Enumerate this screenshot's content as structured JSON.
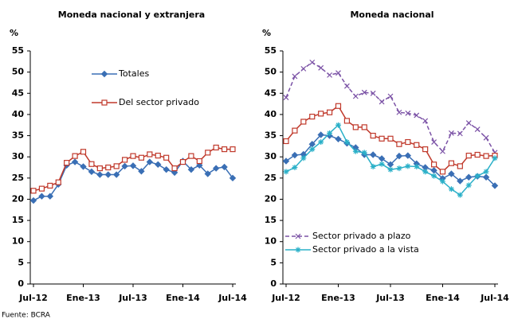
{
  "chart_data": [
    {
      "type": "line",
      "title": "Moneda nacional y extranjera",
      "y_label": "%",
      "categories": [
        "Jul-12",
        null,
        null,
        null,
        null,
        null,
        "Ene-13",
        null,
        null,
        null,
        null,
        null,
        "Jul-13",
        null,
        null,
        null,
        null,
        null,
        "Ene-14",
        null,
        null,
        null,
        null,
        null,
        "Jul-14"
      ],
      "ylim": [
        0,
        55
      ],
      "yticks": [
        0,
        5,
        10,
        15,
        20,
        25,
        30,
        35,
        40,
        45,
        50,
        55
      ],
      "grid": false,
      "series": [
        {
          "name": "Totales",
          "color": "#3a6fb5",
          "marker": "diamond",
          "dashed": false,
          "values": [
            19.7,
            20.7,
            20.7,
            23.5,
            28,
            28.8,
            27.7,
            26.5,
            25.8,
            25.8,
            25.8,
            27.8,
            27.9,
            26.6,
            28.8,
            28.2,
            27,
            26.3,
            29,
            27,
            28,
            26,
            27.3,
            27.6,
            25
          ]
        },
        {
          "name": "Del sector privado",
          "color": "#c0392b",
          "marker": "square",
          "dashed": false,
          "values": [
            22,
            22.5,
            23.2,
            24,
            28.6,
            30.2,
            31.2,
            28.3,
            27.3,
            27.5,
            27.8,
            29.3,
            30.2,
            29.8,
            30.6,
            30.3,
            29.8,
            27.3,
            28.8,
            30.2,
            29,
            31,
            32.2,
            31.8,
            31.8
          ]
        }
      ]
    },
    {
      "type": "line",
      "title": "Moneda nacional",
      "y_label": "%",
      "categories": [
        "Jul-12",
        null,
        null,
        null,
        null,
        null,
        "Ene-13",
        null,
        null,
        null,
        null,
        null,
        "Jul-13",
        null,
        null,
        null,
        null,
        null,
        "Ene-14",
        null,
        null,
        null,
        null,
        null,
        "Jul-14"
      ],
      "ylim": [
        0,
        55
      ],
      "yticks": [
        0,
        5,
        10,
        15,
        20,
        25,
        30,
        35,
        40,
        45,
        50,
        55
      ],
      "grid": false,
      "series": [
        {
          "name": "Sector privado a plazo",
          "color": "#7b52a6",
          "marker": "x",
          "dashed": true,
          "values": [
            44,
            49,
            50.8,
            52.3,
            51,
            49.3,
            49.8,
            46.7,
            44.3,
            45.2,
            45,
            43,
            44.3,
            40.5,
            40.3,
            39.8,
            38.5,
            33.5,
            31.3,
            35.6,
            35.5,
            38,
            36.5,
            34.5,
            31
          ]
        },
        {
          "color": "#c0392b",
          "marker": "square",
          "dashed": false,
          "values": [
            33.7,
            36.2,
            38.3,
            39.5,
            40.2,
            40.5,
            42,
            38.5,
            37,
            37,
            35,
            34.3,
            34.3,
            33,
            33.5,
            32.8,
            31.8,
            28.2,
            26.5,
            28.5,
            27.8,
            30.3,
            30.5,
            30.2,
            30.3
          ]
        },
        {
          "color": "#3a6fb5",
          "marker": "diamond",
          "dashed": false,
          "values": [
            29,
            30.4,
            30.6,
            33,
            35.2,
            35,
            34.2,
            33.2,
            32.2,
            30.5,
            30.5,
            29.6,
            28.2,
            30.2,
            30.3,
            28.4,
            27.5,
            26.8,
            24.9,
            26,
            24.3,
            25.2,
            25.4,
            25.2,
            23.2
          ]
        },
        {
          "name": "Sector privado a la vista",
          "color": "#2ab0c8",
          "marker": "star",
          "dashed": false,
          "values": [
            26.5,
            27.5,
            29.7,
            31.8,
            33.5,
            35.6,
            37.5,
            33.5,
            31.3,
            31,
            27.7,
            28.3,
            27,
            27.3,
            27.8,
            27.7,
            26.5,
            25.5,
            24.2,
            22.4,
            21,
            23.3,
            25.5,
            26.5,
            29.7
          ]
        }
      ]
    }
  ],
  "footnote": "Fuente: BCRA"
}
